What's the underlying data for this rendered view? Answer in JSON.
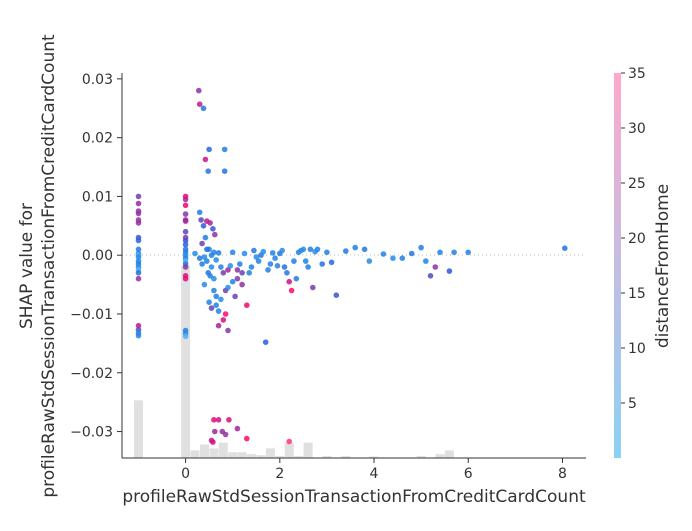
{
  "chart_data": {
    "type": "scatter",
    "title": "",
    "xlabel": "profileRawStdSessionTransactionFromCreditCardCount",
    "ylabel_lines": [
      "SHAP value for",
      "profileRawStdSessionTransactionFromCreditCardCount"
    ],
    "xlim": [
      -1.35,
      8.5
    ],
    "ylim": [
      -0.0345,
      0.031
    ],
    "x_ticks": [
      0,
      2,
      4,
      6,
      8
    ],
    "y_ticks": [
      0.03,
      0.02,
      0.01,
      0.0,
      -0.01,
      -0.02,
      -0.03
    ],
    "grid": false,
    "zero_line": true,
    "colorbar": {
      "label": "distanceFromHome",
      "range": [
        0,
        35
      ],
      "ticks": [
        5,
        10,
        15,
        20,
        25,
        30,
        35
      ],
      "color_low": "#8ad2f4",
      "color_high": "#ffa8cc"
    },
    "histogram": {
      "color": "#e0e0e0",
      "bins": [
        {
          "x": -1.0,
          "height": 0.3
        },
        {
          "x": 0.0,
          "height": 1.0
        },
        {
          "x": 0.2,
          "height": 0.04
        },
        {
          "x": 0.4,
          "height": 0.07
        },
        {
          "x": 0.6,
          "height": 0.05
        },
        {
          "x": 0.8,
          "height": 0.08
        },
        {
          "x": 1.0,
          "height": 0.03
        },
        {
          "x": 1.2,
          "height": 0.03
        },
        {
          "x": 1.4,
          "height": 0.02
        },
        {
          "x": 1.6,
          "height": 0.015
        },
        {
          "x": 1.8,
          "height": 0.05
        },
        {
          "x": 2.0,
          "height": 0.01
        },
        {
          "x": 2.2,
          "height": 0.08
        },
        {
          "x": 2.4,
          "height": 0.01
        },
        {
          "x": 2.6,
          "height": 0.08
        },
        {
          "x": 3.0,
          "height": 0.01
        },
        {
          "x": 3.4,
          "height": 0.01
        },
        {
          "x": 4.0,
          "height": 0.008
        },
        {
          "x": 5.0,
          "height": 0.01
        },
        {
          "x": 5.4,
          "height": 0.02
        },
        {
          "x": 5.6,
          "height": 0.04
        }
      ]
    },
    "points": [
      [
        -1.0,
        0.01,
        17
      ],
      [
        -1.0,
        0.0088,
        22
      ],
      [
        -1.0,
        0.0075,
        21
      ],
      [
        -1.0,
        0.0071,
        20
      ],
      [
        -1.0,
        0.006,
        19
      ],
      [
        -1.0,
        0.0055,
        22
      ],
      [
        -1.0,
        0.003,
        12
      ],
      [
        -1.0,
        0.0025,
        8
      ],
      [
        -1.0,
        0.001,
        5
      ],
      [
        -1.0,
        0.0003,
        3
      ],
      [
        -1.0,
        0.0,
        1
      ],
      [
        -1.0,
        -0.0003,
        2
      ],
      [
        -1.0,
        -0.001,
        3
      ],
      [
        -1.0,
        -0.0015,
        4
      ],
      [
        -1.0,
        -0.002,
        2
      ],
      [
        -1.0,
        -0.0025,
        1
      ],
      [
        -1.0,
        -0.003,
        6
      ],
      [
        -1.0,
        -0.004,
        21
      ],
      [
        -1.0,
        -0.012,
        26
      ],
      [
        -1.0,
        -0.0127,
        13
      ],
      [
        -1.0,
        -0.0133,
        3
      ],
      [
        -1.0,
        -0.0137,
        2
      ],
      [
        0.0,
        0.01,
        30
      ],
      [
        0.0,
        0.0095,
        22
      ],
      [
        0.0,
        0.0085,
        29
      ],
      [
        0.0,
        0.007,
        18
      ],
      [
        0.0,
        0.006,
        24
      ],
      [
        0.0,
        0.0058,
        21
      ],
      [
        0.0,
        0.004,
        15
      ],
      [
        0.0,
        0.003,
        20
      ],
      [
        0.0,
        0.0025,
        12
      ],
      [
        0.0,
        0.0018,
        9
      ],
      [
        0.0,
        0.001,
        6
      ],
      [
        0.0,
        0.0005,
        4
      ],
      [
        0.0,
        0.0,
        2
      ],
      [
        0.0,
        -0.0005,
        3
      ],
      [
        0.0,
        -0.001,
        1
      ],
      [
        0.0,
        -0.0015,
        5
      ],
      [
        0.0,
        -0.002,
        20
      ],
      [
        0.0,
        -0.0035,
        29
      ],
      [
        0.0,
        -0.004,
        28
      ],
      [
        0.0,
        -0.0128,
        3
      ],
      [
        0.0,
        -0.0133,
        2
      ],
      [
        0.0,
        -0.0138,
        1
      ],
      [
        0.28,
        0.028,
        20
      ],
      [
        0.3,
        0.0257,
        25
      ],
      [
        0.38,
        0.025,
        5
      ],
      [
        0.42,
        0.0163,
        26
      ],
      [
        0.5,
        0.018,
        8
      ],
      [
        0.48,
        0.0143,
        6
      ],
      [
        0.83,
        0.018,
        4
      ],
      [
        0.83,
        0.0143,
        6
      ],
      [
        0.3,
        0.0073,
        4
      ],
      [
        0.33,
        0.006,
        15
      ],
      [
        0.38,
        0.005,
        10
      ],
      [
        0.42,
        0.003,
        4
      ],
      [
        0.35,
        0.002,
        17
      ],
      [
        0.5,
        0.001,
        4
      ],
      [
        0.6,
        0.0005,
        3
      ],
      [
        0.4,
        -0.0003,
        2
      ],
      [
        0.45,
        -0.001,
        3
      ],
      [
        0.55,
        -0.002,
        2
      ],
      [
        0.48,
        -0.003,
        6
      ],
      [
        0.52,
        -0.0035,
        4
      ],
      [
        0.6,
        -0.004,
        2
      ],
      [
        0.5,
        -0.008,
        3
      ],
      [
        0.55,
        -0.009,
        16
      ],
      [
        0.65,
        -0.0085,
        3
      ],
      [
        0.75,
        -0.0075,
        2
      ],
      [
        0.85,
        -0.006,
        17
      ],
      [
        0.85,
        -0.01,
        31
      ],
      [
        0.8,
        -0.011,
        28
      ],
      [
        0.7,
        -0.012,
        22
      ],
      [
        0.9,
        -0.0128,
        18
      ],
      [
        1.05,
        -0.007,
        16
      ],
      [
        1.1,
        -0.004,
        18
      ],
      [
        1.2,
        -0.005,
        20
      ],
      [
        1.3,
        -0.0085,
        30
      ],
      [
        1.4,
        -0.002,
        3
      ],
      [
        1.5,
        -0.0003,
        2
      ],
      [
        1.6,
        0.0,
        5
      ],
      [
        1.7,
        -0.0148,
        10
      ],
      [
        1.8,
        -0.0015,
        4
      ],
      [
        1.9,
        -0.0005,
        3
      ],
      [
        2.0,
        0.0003,
        6
      ],
      [
        2.1,
        -0.002,
        7
      ],
      [
        2.2,
        -0.0045,
        27
      ],
      [
        2.25,
        -0.006,
        31
      ],
      [
        2.3,
        -0.001,
        4
      ],
      [
        2.4,
        0.0005,
        3
      ],
      [
        2.5,
        0.001,
        2
      ],
      [
        2.6,
        -0.002,
        4
      ],
      [
        2.7,
        -0.0055,
        18
      ],
      [
        2.8,
        0.001,
        3
      ],
      [
        2.9,
        -0.0015,
        6
      ],
      [
        3.0,
        0.0005,
        4
      ],
      [
        3.1,
        -0.0012,
        8
      ],
      [
        3.2,
        -0.0068,
        12
      ],
      [
        3.4,
        0.0007,
        5
      ],
      [
        3.6,
        0.0013,
        4
      ],
      [
        3.8,
        0.001,
        5
      ],
      [
        3.9,
        -0.001,
        2
      ],
      [
        4.2,
        0.0002,
        3
      ],
      [
        4.4,
        -0.0005,
        2
      ],
      [
        4.6,
        -0.0005,
        3
      ],
      [
        4.8,
        0.0003,
        5
      ],
      [
        5.0,
        0.0013,
        4
      ],
      [
        5.1,
        -0.001,
        3
      ],
      [
        5.2,
        -0.0035,
        14
      ],
      [
        5.3,
        -0.002,
        20
      ],
      [
        5.4,
        0.0005,
        3
      ],
      [
        5.6,
        -0.0027,
        11
      ],
      [
        5.7,
        0.0005,
        4
      ],
      [
        6.0,
        0.0005,
        3
      ],
      [
        8.05,
        0.0012,
        6
      ],
      [
        0.2,
        0.0003,
        2
      ],
      [
        0.3,
        -0.0005,
        5
      ],
      [
        0.35,
        -0.0015,
        4
      ],
      [
        0.45,
        0.001,
        6
      ],
      [
        0.55,
        0.0,
        3
      ],
      [
        0.65,
        -0.0008,
        2
      ],
      [
        0.7,
        0.0004,
        4
      ],
      [
        0.75,
        -0.002,
        3
      ],
      [
        0.8,
        -0.003,
        17
      ],
      [
        0.9,
        -0.0025,
        22
      ],
      [
        0.95,
        -0.0018,
        2
      ],
      [
        1.0,
        0.0005,
        3
      ],
      [
        1.15,
        -0.0015,
        4
      ],
      [
        1.25,
        0.0003,
        2
      ],
      [
        1.35,
        -0.003,
        3
      ],
      [
        1.45,
        0.0008,
        5
      ],
      [
        1.55,
        -0.001,
        3
      ],
      [
        1.65,
        0.0006,
        2
      ],
      [
        1.75,
        -0.0025,
        4
      ],
      [
        1.85,
        0.0004,
        3
      ],
      [
        1.95,
        -0.0018,
        3
      ],
      [
        2.05,
        0.0008,
        2
      ],
      [
        2.15,
        -0.003,
        5
      ],
      [
        2.35,
        -0.004,
        4
      ],
      [
        2.45,
        0.0008,
        2
      ],
      [
        2.55,
        -0.001,
        3
      ],
      [
        2.65,
        0.001,
        4
      ],
      [
        2.75,
        0.0006,
        2
      ],
      [
        0.6,
        -0.006,
        3
      ],
      [
        0.65,
        -0.007,
        4
      ],
      [
        0.4,
        -0.005,
        2
      ],
      [
        0.9,
        -0.0055,
        2
      ],
      [
        1.0,
        -0.0045,
        3
      ],
      [
        1.1,
        -0.0025,
        19
      ],
      [
        1.2,
        -0.003,
        16
      ],
      [
        0.7,
        -0.0095,
        3
      ],
      [
        0.58,
        0.0045,
        12
      ],
      [
        0.62,
        0.0035,
        20
      ],
      [
        0.52,
        0.0055,
        22
      ],
      [
        0.45,
        0.0058,
        25
      ],
      [
        0.6,
        -0.028,
        29
      ],
      [
        0.7,
        -0.028,
        27
      ],
      [
        0.92,
        -0.028,
        28
      ],
      [
        0.62,
        -0.03,
        22
      ],
      [
        0.78,
        -0.03,
        21
      ],
      [
        0.85,
        -0.0305,
        20
      ],
      [
        0.55,
        -0.0315,
        25
      ],
      [
        0.58,
        -0.0318,
        27
      ],
      [
        1.1,
        -0.0295,
        22
      ],
      [
        1.3,
        -0.0312,
        31
      ],
      [
        2.2,
        -0.0317,
        32
      ]
    ]
  }
}
